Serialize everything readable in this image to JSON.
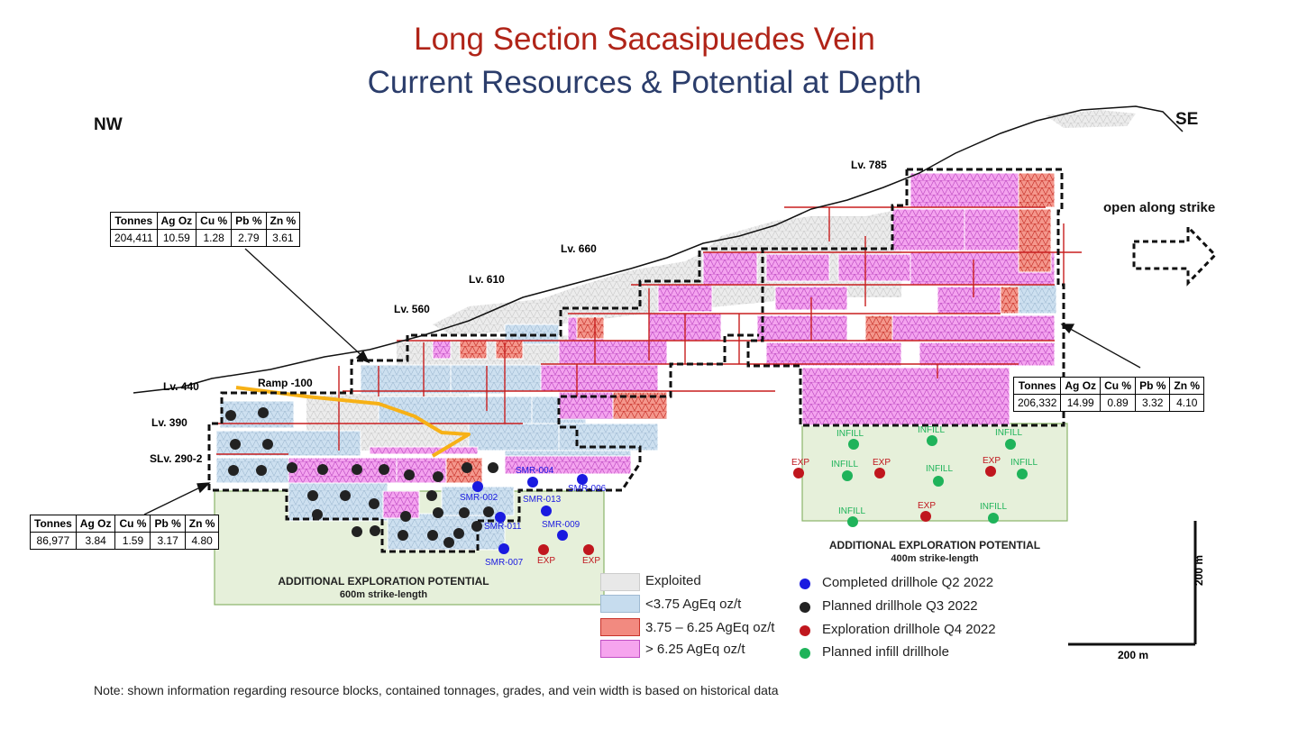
{
  "title": {
    "line1": "Long Section Sacasipuedes Vein",
    "line2": "Current Resources & Potential at Depth"
  },
  "directions": {
    "left": "NW",
    "right": "SE"
  },
  "open_along_strike": "open along strike",
  "levels": [
    "Lv. 785",
    "Lv. 660",
    "Lv. 610",
    "Lv. 560",
    "Lv. 440",
    "Ramp -100",
    "Lv. 390",
    "SLv. 290-2"
  ],
  "tables": {
    "headers": [
      "Tonnes",
      "Ag Oz",
      "Cu %",
      "Pb %",
      "Zn %"
    ],
    "top_left": [
      "204,411",
      "10.59",
      "1.28",
      "2.79",
      "3.61"
    ],
    "right": [
      "206,332",
      "14.99",
      "0.89",
      "3.32",
      "4.10"
    ],
    "bottom_left": [
      "86,977",
      "3.84",
      "1.59",
      "3.17",
      "4.80"
    ]
  },
  "drillhole_labels": {
    "smr": [
      "SMR-004",
      "SMR-006",
      "SMR-002",
      "SMR-013",
      "SMR-011",
      "SMR-009",
      "SMR-007"
    ],
    "exp": "EXP",
    "infill": "INFILL"
  },
  "exploration": {
    "left": {
      "title": "ADDITIONAL EXPLORATION POTENTIAL",
      "subtitle": "600m strike-length"
    },
    "right": {
      "title": "ADDITIONAL EXPLORATION POTENTIAL",
      "subtitle": "400m strike-length"
    }
  },
  "legend_blocks": [
    {
      "label": "Exploited",
      "color": "#e8e8e8"
    },
    {
      "label": "<3.75 AgEq oz/t",
      "color": "#c6dcee"
    },
    {
      "label": "3.75 – 6.25 AgEq oz/t",
      "color": "#f28a80"
    },
    {
      "label": "> 6.25 AgEq oz/t",
      "color": "#f6a4ee"
    }
  ],
  "legend_dots": [
    {
      "label": "Completed drillhole Q2 2022",
      "color": "#1a1ae0"
    },
    {
      "label": "Planned drillhole Q3 2022",
      "color": "#222222"
    },
    {
      "label": "Exploration drillhole Q4 2022",
      "color": "#c0171e"
    },
    {
      "label": "Planned infill drillhole",
      "color": "#1fb35a"
    }
  ],
  "scale": {
    "vertical": "200 m",
    "horizontal": "200 m"
  },
  "note": "Note: shown information regarding resource blocks, contained tonnages, grades, and vein width is based on historical data"
}
